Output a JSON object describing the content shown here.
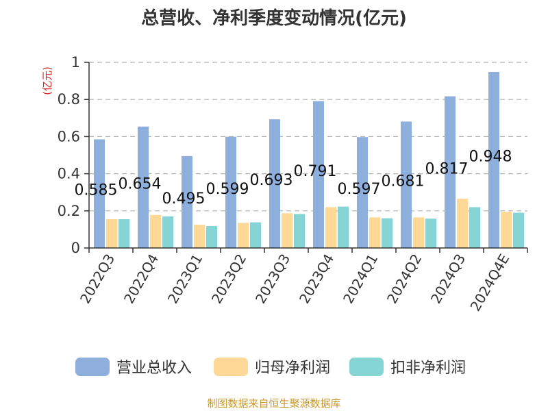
{
  "colors": {
    "revenue": "#8eaedc",
    "net_profit": "#fed897",
    "non_recurring_profit": "#85d5d5",
    "grid": "#b0b0b0",
    "axis": "#333333",
    "unit": "#d62728",
    "source": "#c8982c"
  },
  "chart_data": {
    "type": "bar",
    "title": "总营收、净利季度变动情况(亿元)",
    "ylabel": "(亿元)",
    "xlabel": "",
    "ylim": [
      0,
      1
    ],
    "yticks": [
      "0",
      "0.2",
      "0.4",
      "0.6",
      "0.8",
      "1"
    ],
    "grid": true,
    "legend_position": "bottom",
    "categories": [
      "2022Q3",
      "2022Q4",
      "2023Q1",
      "2023Q2",
      "2023Q3",
      "2023Q4",
      "2024Q1",
      "2024Q2",
      "2024Q3",
      "2024Q4E"
    ],
    "series": [
      {
        "name": "营业总收入",
        "values": [
          0.585,
          0.654,
          0.495,
          0.599,
          0.693,
          0.791,
          0.597,
          0.681,
          0.817,
          0.948
        ]
      },
      {
        "name": "归母净利润",
        "values": [
          0.155,
          0.178,
          0.125,
          0.135,
          0.187,
          0.22,
          0.165,
          0.165,
          0.265,
          0.195
        ]
      },
      {
        "name": "扣非净利润",
        "values": [
          0.155,
          0.17,
          0.118,
          0.138,
          0.183,
          0.223,
          0.16,
          0.158,
          0.22,
          0.19
        ]
      }
    ],
    "data_labels": [
      "0.585",
      "0.654",
      "0.495",
      "0.599",
      "0.693",
      "0.791",
      "0.597",
      "0.681",
      "0.817",
      "0.948"
    ]
  },
  "source_note": "制图数据来自恒生聚源数据库"
}
